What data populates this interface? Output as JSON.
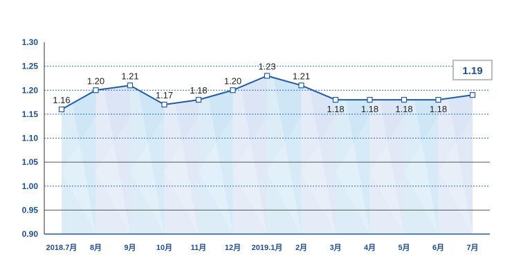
{
  "chart_data": {
    "type": "line",
    "x": [
      "2018.7月",
      "8月",
      "9月",
      "10月",
      "11月",
      "12月",
      "2019.1月",
      "2月",
      "3月",
      "4月",
      "5月",
      "6月",
      "7月"
    ],
    "values": [
      1.16,
      1.2,
      1.21,
      1.17,
      1.18,
      1.2,
      1.23,
      1.21,
      1.18,
      1.18,
      1.18,
      1.18,
      1.19
    ],
    "labels": [
      "1.16",
      "1.20",
      "1.21",
      "1.17",
      "1.18",
      "1.20",
      "1.23",
      "1.21",
      "1.18",
      "1.18",
      "1.18",
      "1.18",
      "1.19"
    ],
    "yticks": [
      "0.90",
      "0.95",
      "1.00",
      "1.05",
      "1.10",
      "1.15",
      "1.20",
      "1.25",
      "1.30"
    ],
    "ylim": [
      0.9,
      1.3
    ],
    "solid_gridlines": [
      0.95,
      1.05
    ],
    "dotted_gridlines": [
      1.0,
      1.1,
      1.15,
      1.2,
      1.25
    ],
    "highlighted_index": 12,
    "title": "",
    "xlabel": "",
    "ylabel": "",
    "colors": {
      "line": "#1f5aa6",
      "marker_fill": "#ffffff",
      "tick_text": "#1f4e91",
      "grid_dotted": "#2a6ab8",
      "grid_solid": "#555555",
      "area_a": "#cfe6f6",
      "area_b": "#dbe5f5",
      "highlight_border": "#bbbbbb"
    }
  }
}
